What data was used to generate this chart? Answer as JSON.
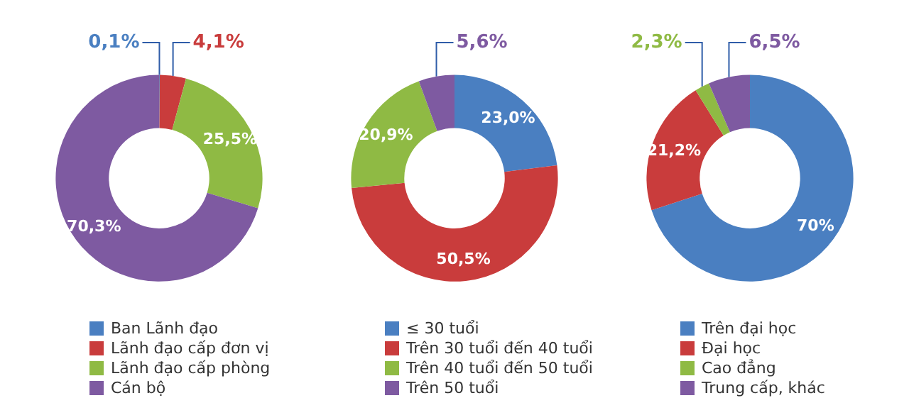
{
  "chart_data": [
    {
      "type": "donut",
      "categories": [
        "Ban Lãnh đạo",
        "Lãnh đạo cấp đơn vị",
        "Lãnh đạo cấp phòng",
        "Cán bộ"
      ],
      "values": [
        0.1,
        4.1,
        25.5,
        70.3
      ],
      "colors": [
        "#4a7fc1",
        "#c93c3c",
        "#8fba44",
        "#7e5aa1"
      ],
      "value_labels": [
        "0,1%",
        "4,1%",
        "25,5%",
        "70,3%"
      ],
      "legend": "bottom"
    },
    {
      "type": "donut",
      "categories": [
        "≤ 30 tuổi",
        "Trên 30 tuổi đến 40 tuổi",
        "Trên 40 tuổi đến 50 tuổi",
        "Trên 50 tuổi"
      ],
      "values": [
        23.0,
        50.5,
        20.9,
        5.6
      ],
      "colors": [
        "#4a7fc1",
        "#c93c3c",
        "#8fba44",
        "#7e5aa1"
      ],
      "value_labels": [
        "23,0%",
        "50,5%",
        "20,9%",
        "5,6%"
      ],
      "legend": "bottom"
    },
    {
      "type": "donut",
      "categories": [
        "Trên đại học",
        "Đại học",
        "Cao đẳng",
        "Trung cấp, khác"
      ],
      "values": [
        70,
        21.2,
        2.3,
        6.5
      ],
      "colors": [
        "#4a7fc1",
        "#c93c3c",
        "#8fba44",
        "#7e5aa1"
      ],
      "value_labels": [
        "70%",
        "21,2%",
        "2,3%",
        "6,5%"
      ],
      "legend": "bottom"
    }
  ]
}
